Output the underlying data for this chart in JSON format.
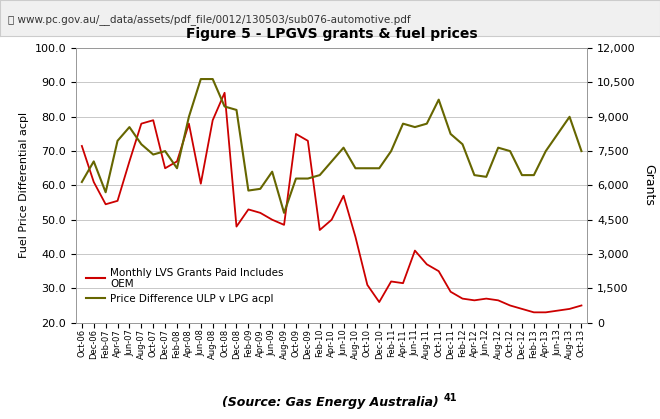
{
  "title": "Figure 5 - LPGVS grants & fuel prices",
  "url_label": "⎙ www.pc.gov.au/__data/assets/pdf_file/0012/130503/sub076-automotive.pdf",
  "source_label": "(Source: Gas Energy Australia)",
  "source_super": "41",
  "ylabel_left": "Fuel Price Differential acpl",
  "ylabel_right": "Grants",
  "ylim_left": [
    20.0,
    100.0
  ],
  "ylim_right": [
    0,
    12000
  ],
  "yticks_left": [
    20.0,
    30.0,
    40.0,
    50.0,
    60.0,
    70.0,
    80.0,
    90.0,
    100.0
  ],
  "yticks_right": [
    0,
    1500,
    3000,
    4500,
    6000,
    7500,
    9000,
    10500,
    12000
  ],
  "background_color": "#ffffff",
  "url_bar_color": "#f0f0f0",
  "url_bar_border": "#cccccc",
  "grid_color": "#c8c8c8",
  "red_color": "#cc0000",
  "olive_color": "#666600",
  "legend1_line1": "Monthly LVS Grants Paid Includes",
  "legend1_line2": "OEM",
  "legend2": "Price Difference ULP v LPG acpl",
  "x_labels": [
    "Oct-06",
    "Dec-06",
    "Feb-07",
    "Apr-07",
    "Jun-07",
    "Aug-07",
    "Oct-07",
    "Dec-07",
    "Feb-08",
    "Apr-08",
    "Jun-08",
    "Aug-08",
    "Oct-08",
    "Dec-08",
    "Feb-09",
    "Apr-09",
    "Jun-09",
    "Aug-09",
    "Oct-09",
    "Dec-09",
    "Feb-10",
    "Apr-10",
    "Jun-10",
    "Aug-10",
    "Oct-10",
    "Dec-10",
    "Feb-11",
    "Apr-11",
    "Jun-11",
    "Aug-11",
    "Oct-11",
    "Dec-11",
    "Feb-12",
    "Apr-12",
    "Jun-12",
    "Aug-12",
    "Oct-12",
    "Dec-12",
    "Feb-13",
    "Apr-13",
    "Jun-13",
    "Aug-13",
    "Oct-13"
  ],
  "red_values": [
    71.5,
    61.0,
    54.5,
    55.5,
    67.0,
    78.0,
    79.0,
    65.0,
    67.0,
    78.0,
    60.5,
    79.0,
    87.0,
    48.0,
    53.0,
    52.0,
    50.0,
    48.5,
    75.0,
    73.0,
    47.0,
    50.0,
    57.0,
    45.0,
    31.0,
    26.0,
    32.0,
    31.5,
    41.0,
    37.0,
    35.0,
    29.0,
    27.0,
    26.5,
    27.0,
    26.5,
    25.0,
    24.0,
    23.0,
    23.0,
    23.5,
    24.0,
    25.0
  ],
  "olive_values": [
    61.0,
    67.0,
    58.0,
    73.0,
    77.0,
    72.0,
    69.0,
    70.0,
    65.0,
    80.0,
    91.0,
    91.0,
    83.0,
    82.0,
    58.5,
    59.0,
    64.0,
    52.0,
    62.0,
    62.0,
    63.0,
    67.0,
    71.0,
    65.0,
    65.0,
    65.0,
    70.0,
    78.0,
    77.0,
    78.0,
    85.0,
    75.0,
    72.0,
    63.0,
    62.5,
    71.0,
    70.0,
    63.0,
    63.0,
    70.0,
    75.0,
    80.0,
    70.0
  ]
}
